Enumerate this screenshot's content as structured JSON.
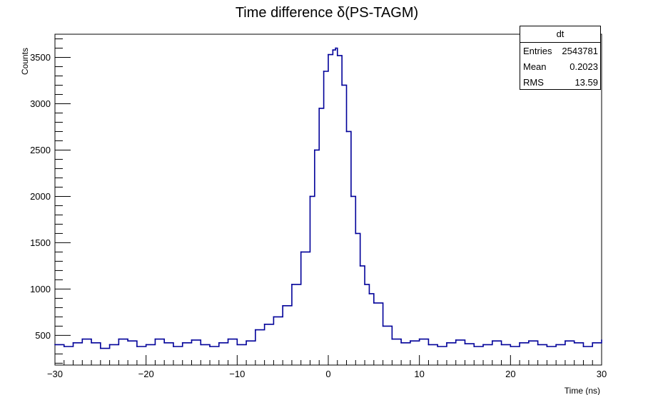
{
  "chart_data": {
    "type": "line",
    "title": "Time difference δ(PS-TAGM)",
    "xlabel": "Time (ns)",
    "ylabel": "Counts",
    "xlim": [
      -30,
      30
    ],
    "ylim": [
      180,
      3750
    ],
    "x_ticks": [
      -30,
      -20,
      -10,
      0,
      10,
      20,
      30
    ],
    "x_tick_labels": [
      "−30",
      "−20",
      "−10",
      "0",
      "10",
      "20",
      "30"
    ],
    "y_ticks": [
      500,
      1000,
      1500,
      2000,
      2500,
      3000,
      3500
    ],
    "y_tick_labels": [
      "500",
      "1000",
      "1500",
      "2000",
      "2500",
      "3000",
      "3500"
    ],
    "grid": false,
    "line_color": "#000099",
    "series": [
      {
        "x": [
          -30,
          -29,
          -28,
          -27,
          -26,
          -25,
          -24,
          -23,
          -22,
          -21,
          -20,
          -19,
          -18,
          -17,
          -16,
          -15,
          -14,
          -13,
          -12,
          -11,
          -10,
          -9,
          -8,
          -7,
          -6,
          -5,
          -4,
          -3,
          -2,
          -1.5,
          -1,
          -0.5,
          0,
          0.5,
          0.8,
          1,
          1.5,
          2,
          2.5,
          3,
          3.5,
          4,
          4.5,
          5,
          6,
          7,
          8,
          9,
          10,
          11,
          12,
          13,
          14,
          15,
          16,
          17,
          18,
          19,
          20,
          21,
          22,
          23,
          24,
          25,
          26,
          27,
          28,
          29,
          30
        ],
        "y": [
          400,
          380,
          420,
          460,
          420,
          360,
          400,
          460,
          440,
          380,
          400,
          460,
          420,
          380,
          420,
          450,
          400,
          380,
          420,
          460,
          400,
          440,
          560,
          620,
          700,
          820,
          1050,
          1400,
          2000,
          2500,
          2950,
          3350,
          3530,
          3580,
          3600,
          3520,
          3200,
          2700,
          2000,
          1600,
          1250,
          1050,
          950,
          850,
          600,
          460,
          420,
          440,
          460,
          400,
          380,
          420,
          450,
          410,
          380,
          400,
          440,
          400,
          380,
          420,
          440,
          400,
          380,
          400,
          440,
          420,
          380,
          420,
          450
        ]
      }
    ],
    "stats": {
      "name": "dt",
      "entries_label": "Entries",
      "entries": "2543781",
      "mean_label": "Mean",
      "mean": "0.2023",
      "rms_label": "RMS",
      "rms": "13.59"
    }
  }
}
